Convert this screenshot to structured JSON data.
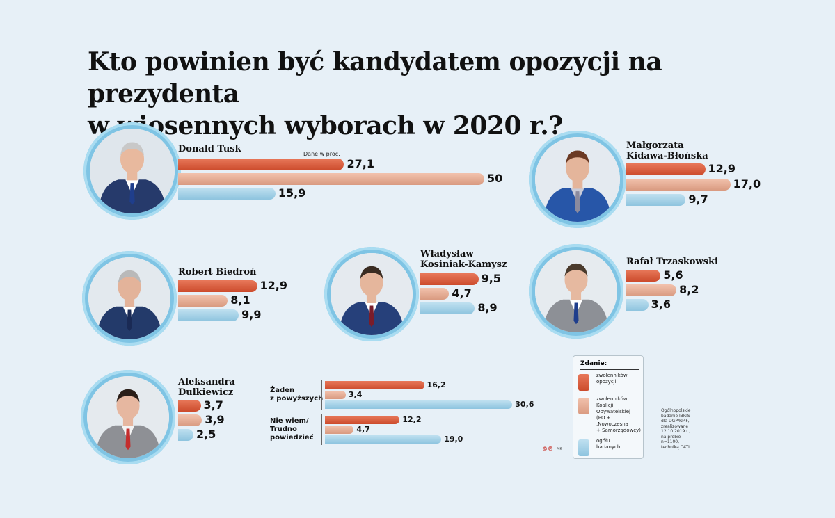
{
  "title": "Kto powinien być kandydatem opozycji na prezydenta w wiosennych wyborach  w 2020 r.?",
  "title_lines": [
    "Kto powinien być kandydatem opozycji na prezydenta",
    "w wiosennych wyborach  w 2020 r.?"
  ],
  "units_note": "Dane w proc.",
  "colors": {
    "opposition": "#d95a3a",
    "ko": "#e6ae96",
    "all": "#a6d2e8",
    "ring": "#7fc4e4"
  },
  "chart_data": {
    "type": "bar",
    "orientation": "horizontal",
    "title": "Kto powinien być kandydatem opozycji na prezydenta w wiosennych wyborach  w 2020 r.?",
    "series_keys": [
      "opposition",
      "ko",
      "all"
    ],
    "candidates": [
      {
        "id": "tusk",
        "name": "Donald Tusk",
        "values": [
          "27,1",
          "50",
          "15,9"
        ],
        "numeric": [
          27.1,
          50,
          15.9
        ]
      },
      {
        "id": "kidawa",
        "name": "Małgorzata Kidawa-Błońska",
        "values": [
          "12,9",
          "17,0",
          "9,7"
        ],
        "numeric": [
          12.9,
          17.0,
          9.7
        ]
      },
      {
        "id": "biedron",
        "name": "Robert Biedroń",
        "values": [
          "12,9",
          "8,1",
          "9,9"
        ],
        "numeric": [
          12.9,
          8.1,
          9.9
        ]
      },
      {
        "id": "kosiniak",
        "name": "Władysław Kosiniak-Kamysz",
        "values": [
          "9,5",
          "4,7",
          "8,9"
        ],
        "numeric": [
          9.5,
          4.7,
          8.9
        ]
      },
      {
        "id": "trzaskowski",
        "name": "Rafał Trzaskowski",
        "values": [
          "5,6",
          "8,2",
          "3,6"
        ],
        "numeric": [
          5.6,
          8.2,
          3.6
        ]
      },
      {
        "id": "dulkiewicz",
        "name": "Aleksandra Dulkiewicz",
        "values": [
          "3,7",
          "3,9",
          "2,5"
        ],
        "numeric": [
          3.7,
          3.9,
          2.5
        ]
      }
    ],
    "other_answers": [
      {
        "id": "none",
        "label": "Żaden z powyższych",
        "values": [
          "16,2",
          "3,4",
          "30,6"
        ],
        "numeric": [
          16.2,
          3.4,
          30.6
        ]
      },
      {
        "id": "dontknow",
        "label": "Nie wiem/ Trudno powiedzieć",
        "values": [
          "12,2",
          "4,7",
          "19,0"
        ],
        "numeric": [
          12.2,
          4.7,
          19.0
        ]
      }
    ]
  },
  "candidate_labels": {
    "tusk": [
      "Donald Tusk"
    ],
    "kidawa": [
      "Małgorzata",
      "Kidawa-Błońska"
    ],
    "biedron": [
      "Robert Biedroń"
    ],
    "kosiniak": [
      "Władysław",
      "Kosiniak-Kamysz"
    ],
    "trzaskowski": [
      "Rafał Trzaskowski"
    ],
    "dulkiewicz": [
      "Aleksandra",
      "Dulkiewicz"
    ]
  },
  "other_labels": {
    "none": [
      "Żaden",
      "z powyższych"
    ],
    "dontknow": [
      "Nie wiem/",
      "Trudno",
      "powiedzieć"
    ]
  },
  "legend": {
    "title": "Zdanie:",
    "items": [
      {
        "key": "opposition",
        "lines": [
          "zwolenników",
          "opozycji"
        ]
      },
      {
        "key": "ko",
        "lines": [
          "zwolenników",
          "Koalicji",
          "Obywatelskiej",
          "(PO + .Nowoczesna",
          "+ Samorządowcy)"
        ]
      },
      {
        "key": "all",
        "lines": [
          "ogółu",
          "badanych"
        ]
      }
    ]
  },
  "source_lines": [
    "Ogólnopolskie",
    "badanie IBRIS",
    "dla DGP/RMF,",
    "zrealizowane",
    "12.10.2019 r.,",
    "na próbie",
    "n=1100,",
    "techniką CATI"
  ],
  "logo_text": "©℗",
  "author": "MK"
}
